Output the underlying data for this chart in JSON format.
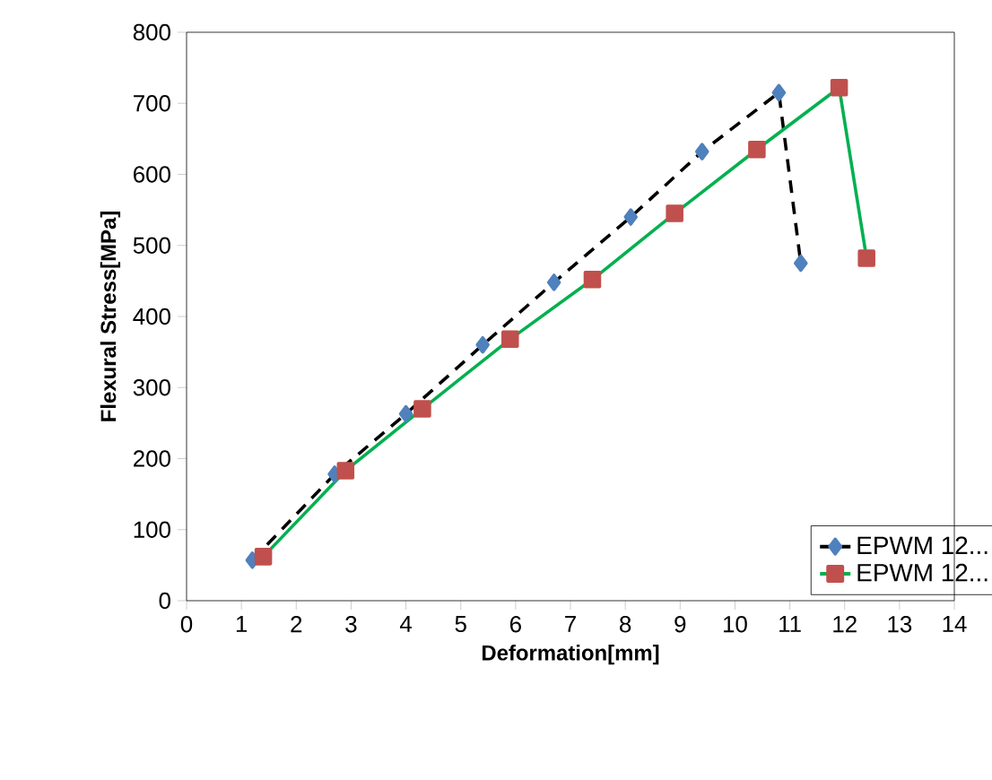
{
  "chart_data": {
    "type": "line",
    "xlabel": "Deformation[mm]",
    "ylabel": "Flexural  Stress[MPa]",
    "xlim": [
      0,
      14
    ],
    "ylim": [
      0,
      800
    ],
    "xticks": [
      0,
      1,
      2,
      3,
      4,
      5,
      6,
      7,
      8,
      9,
      10,
      11,
      12,
      13,
      14
    ],
    "yticks": [
      0,
      100,
      200,
      300,
      400,
      500,
      600,
      700,
      800
    ],
    "legend": "bottom right",
    "grid": false,
    "series": [
      {
        "name": "EPWM 12...",
        "color": "#000000",
        "colors": [
          "#4f81bd",
          "#4f81bd",
          "#4f81bd",
          "#4f81bd",
          "#4f81bd",
          "#4f81bd",
          "#4f81bd",
          "#4f81bd",
          "#4f81bd"
        ],
        "marker": "diamond",
        "line_style": "dashed",
        "x": [
          1.2,
          2.7,
          4.0,
          5.4,
          6.7,
          8.1,
          9.4,
          10.8,
          11.2
        ],
        "values": [
          57,
          178,
          263,
          360,
          448,
          540,
          632,
          715,
          475
        ]
      },
      {
        "name": "EPWM 12...",
        "color": "#00b050",
        "colors": [
          "#c0504d",
          "#c0504d",
          "#c0504d",
          "#c0504d",
          "#c0504d",
          "#c0504d",
          "#c0504d",
          "#c0504d",
          "#c0504d"
        ],
        "marker": "square",
        "line_style": "solid",
        "x": [
          1.4,
          2.9,
          4.3,
          5.9,
          7.4,
          8.9,
          10.4,
          11.9,
          12.4
        ],
        "values": [
          62,
          183,
          270,
          368,
          452,
          545,
          635,
          722,
          482
        ]
      }
    ]
  }
}
